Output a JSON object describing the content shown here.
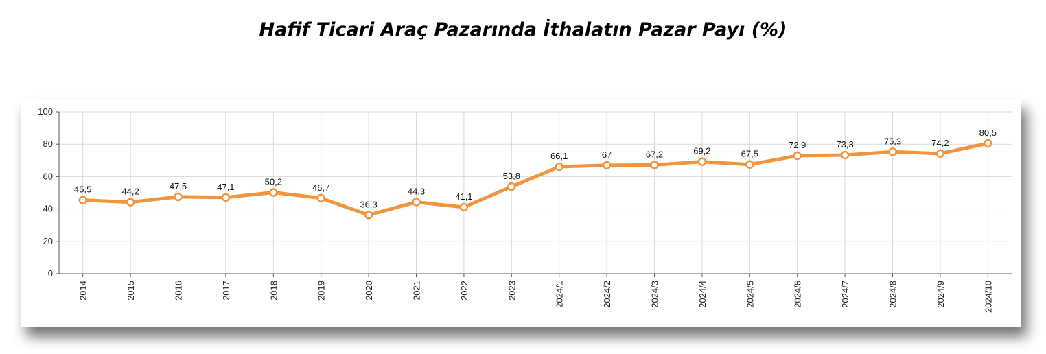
{
  "title": "Hafif Ticari Araç Pazarında İthalatın Pazar Payı (%)",
  "chart_data": {
    "type": "line",
    "title": "Hafif Ticari Araç Pazarında İthalatın Pazar Payı (%)",
    "xlabel": "",
    "ylabel": "",
    "ylim": [
      0,
      100
    ],
    "yticks": [
      0,
      20,
      40,
      60,
      80,
      100
    ],
    "grid": true,
    "legend": "none",
    "line_color": "#f0953d",
    "categories": [
      "2014",
      "2015",
      "2016",
      "2017",
      "2018",
      "2019",
      "2020",
      "2021",
      "2022",
      "2023",
      "2024/1",
      "2024/2",
      "2024/3",
      "2024/4",
      "2024/5",
      "2024/6",
      "2024/7",
      "2024/8",
      "2024/9",
      "2024/10"
    ],
    "values": [
      45.5,
      44.2,
      47.5,
      47.1,
      50.2,
      46.7,
      36.3,
      44.3,
      41.1,
      53.8,
      66.1,
      67,
      67.2,
      69.2,
      67.5,
      72.9,
      73.3,
      75.3,
      74.2,
      80.5
    ],
    "value_labels": [
      "45,5",
      "44,2",
      "47,5",
      "47,1",
      "50,2",
      "46,7",
      "36,3",
      "44,3",
      "41,1",
      "53,8",
      "66,1",
      "67",
      "67,2",
      "69,2",
      "67,5",
      "72,9",
      "73,3",
      "75,3",
      "74,2",
      "80,5"
    ]
  }
}
